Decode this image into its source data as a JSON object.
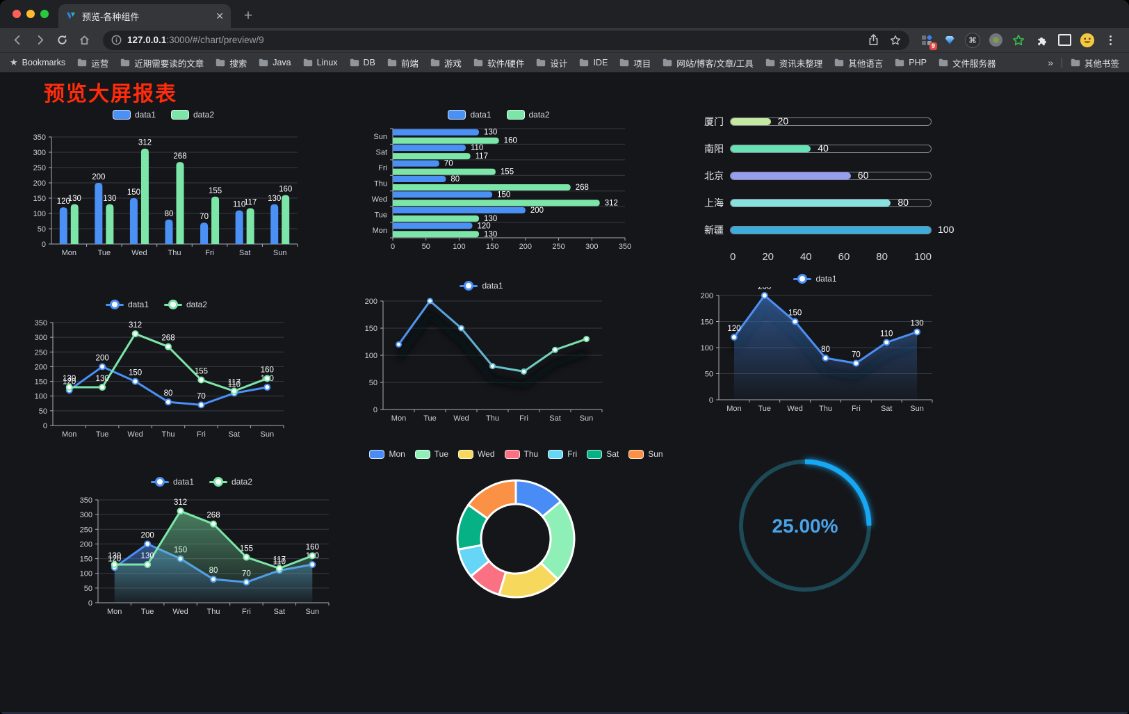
{
  "browser": {
    "traffic_lights": {
      "close": "#ff5f57",
      "minimize": "#febc2e",
      "zoom": "#28c840"
    },
    "tab": {
      "title": "预览-各种组件",
      "close_glyph": "✕",
      "new_tab_glyph": "+"
    },
    "toolbar": {
      "url_host": "127.0.0.1",
      "url_rest": ":3000/#/chart/preview/9",
      "extension_badge": "9"
    },
    "bookmarks": {
      "label": "Bookmarks",
      "folders": [
        "运营",
        "近期需要读的文章",
        "搜索",
        "Java",
        "Linux",
        "DB",
        "前端",
        "游戏",
        "软件/硬件",
        "设计",
        "IDE",
        "项目",
        "网站/博客/文章/工具",
        "资讯未整理",
        "其他语言",
        "PHP",
        "文件服务器"
      ],
      "overflow_glyph": "»",
      "other_label": "其他书签"
    }
  },
  "page": {
    "title": "预览大屏报表",
    "title_color": "#ff2b0a",
    "background": "#15161a"
  },
  "chart_data": [
    {
      "id": "bar-grouped",
      "type": "bar",
      "categories": [
        "Mon",
        "Tue",
        "Wed",
        "Thu",
        "Fri",
        "Sat",
        "Sun"
      ],
      "series": [
        {
          "name": "data1",
          "color": "#4a90f5",
          "values": [
            120,
            200,
            150,
            80,
            70,
            110,
            130
          ]
        },
        {
          "name": "data2",
          "color": "#7ce6a8",
          "values": [
            130,
            130,
            312,
            268,
            155,
            117,
            160
          ]
        }
      ],
      "ylim": [
        0,
        350
      ],
      "ytick": 50,
      "grid": true,
      "legend_position": "top"
    },
    {
      "id": "bar-horizontal",
      "type": "bar-horizontal",
      "categories": [
        "Mon",
        "Tue",
        "Wed",
        "Thu",
        "Fri",
        "Sat",
        "Sun"
      ],
      "series": [
        {
          "name": "data1",
          "color": "#4a90f5",
          "values": [
            120,
            200,
            150,
            80,
            70,
            110,
            130
          ]
        },
        {
          "name": "data2",
          "color": "#7ce6a8",
          "values": [
            130,
            130,
            312,
            268,
            155,
            117,
            160
          ]
        }
      ],
      "xlim": [
        0,
        350
      ],
      "xtick": 50,
      "grid": true,
      "legend_position": "top"
    },
    {
      "id": "progress-list",
      "type": "progress",
      "items": [
        {
          "label": "厦门",
          "value": 20,
          "color": "#c4e99f"
        },
        {
          "label": "南阳",
          "value": 40,
          "color": "#66e2b4"
        },
        {
          "label": "北京",
          "value": 60,
          "color": "#969ef0"
        },
        {
          "label": "上海",
          "value": 80,
          "color": "#86e2de"
        },
        {
          "label": "新疆",
          "value": 100,
          "color": "#3aadde"
        }
      ],
      "max": 100,
      "xticks": [
        0,
        20,
        40,
        60,
        80,
        100
      ]
    },
    {
      "id": "line-two",
      "type": "line",
      "categories": [
        "Mon",
        "Tue",
        "Wed",
        "Thu",
        "Fri",
        "Sat",
        "Sun"
      ],
      "series": [
        {
          "name": "data1",
          "color": "#4a90f5",
          "values": [
            120,
            200,
            150,
            80,
            70,
            110,
            130
          ]
        },
        {
          "name": "data2",
          "color": "#7ce6a8",
          "values": [
            130,
            130,
            312,
            268,
            155,
            117,
            160
          ]
        }
      ],
      "ylim": [
        0,
        350
      ],
      "ytick": 50,
      "labels": true,
      "grid": true,
      "legend_position": "top"
    },
    {
      "id": "line-gradient",
      "type": "line-gradient",
      "categories": [
        "Mon",
        "Tue",
        "Wed",
        "Thu",
        "Fri",
        "Sat",
        "Sun"
      ],
      "series": [
        {
          "name": "data1",
          "colors": [
            "#4a90f5",
            "#7ce6a8"
          ],
          "values": [
            120,
            200,
            150,
            80,
            70,
            110,
            130
          ]
        }
      ],
      "ylim": [
        0,
        200
      ],
      "ytick": 50,
      "labels": false,
      "grid": true,
      "legend_position": "top"
    },
    {
      "id": "line-area-single",
      "type": "line",
      "categories": [
        "Mon",
        "Tue",
        "Wed",
        "Thu",
        "Fri",
        "Sat",
        "Sun"
      ],
      "series": [
        {
          "name": "data1",
          "color": "#4a90f5",
          "area": true,
          "shadow": true,
          "values": [
            120,
            200,
            150,
            80,
            70,
            110,
            130
          ]
        }
      ],
      "ylim": [
        0,
        200
      ],
      "ytick": 50,
      "labels": true,
      "grid": true,
      "legend_position": "top"
    },
    {
      "id": "line-area-two",
      "type": "line",
      "categories": [
        "Mon",
        "Tue",
        "Wed",
        "Thu",
        "Fri",
        "Sat",
        "Sun"
      ],
      "series": [
        {
          "name": "data1",
          "color": "#4a90f5",
          "area": true,
          "values": [
            120,
            200,
            150,
            80,
            70,
            110,
            130
          ]
        },
        {
          "name": "data2",
          "color": "#7ce6a8",
          "area": true,
          "values": [
            130,
            130,
            312,
            268,
            155,
            117,
            160
          ]
        }
      ],
      "ylim": [
        0,
        350
      ],
      "ytick": 50,
      "labels": true,
      "grid": true,
      "legend_position": "top"
    },
    {
      "id": "donut",
      "type": "pie",
      "categories": [
        "Mon",
        "Tue",
        "Wed",
        "Thu",
        "Fri",
        "Sat",
        "Sun"
      ],
      "values": [
        120,
        200,
        150,
        80,
        70,
        110,
        130
      ],
      "colors": [
        "#4a8cf5",
        "#8ef0b6",
        "#f6d95c",
        "#fa7183",
        "#67d5f5",
        "#06b186",
        "#fa9144"
      ],
      "inner_radius": 50,
      "outer_radius": 84,
      "border_color": "#ffffff",
      "legend_position": "top"
    },
    {
      "id": "gauge",
      "type": "gauge",
      "value": 25,
      "label": "25.00%",
      "color": "#16a8f4",
      "track": "#1c4a57",
      "text_color": "#4aa4e9"
    }
  ]
}
